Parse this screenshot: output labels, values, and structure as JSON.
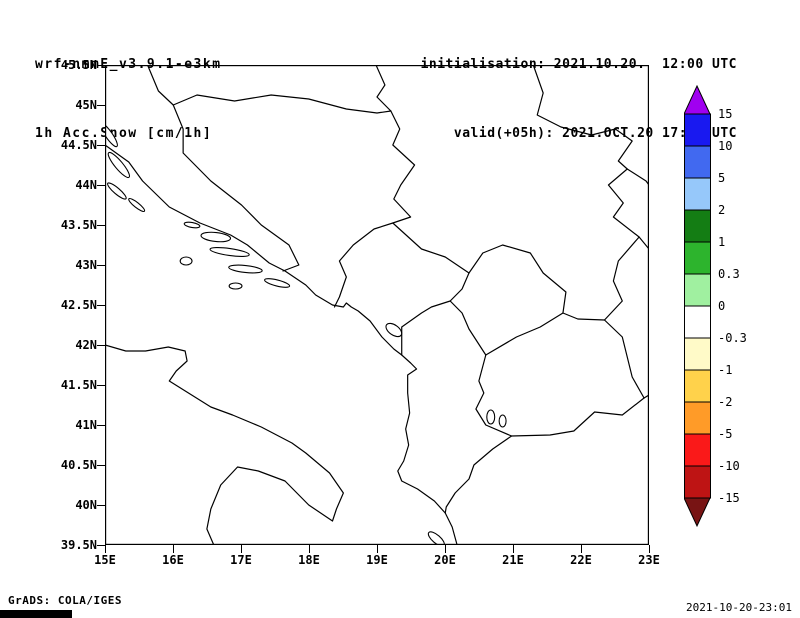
{
  "header": {
    "model": "wrf-nmmE_v3.9.1-e3km",
    "product": "1h Acc.Snow [cm/1h]",
    "init": "initialisation: 2021.10.20.  12:00 UTC",
    "valid": "valid(+05h): 2021.OCT.20 17:00 UTC"
  },
  "map": {
    "lat_labels": [
      "45.5N",
      "45N",
      "44.5N",
      "44N",
      "43.5N",
      "43N",
      "42.5N",
      "42N",
      "41.5N",
      "41N",
      "40.5N",
      "40N",
      "39.5N"
    ],
    "lon_labels": [
      "15E",
      "16E",
      "17E",
      "18E",
      "19E",
      "20E",
      "21E",
      "22E",
      "23E"
    ],
    "lat_range": [
      39.5,
      45.5
    ],
    "lon_range": [
      15,
      23
    ]
  },
  "colorbar": {
    "levels": [
      "15",
      "10",
      "5",
      "2",
      "1",
      "0.3",
      "0",
      "-0.3",
      "-1",
      "-2",
      "-5",
      "-10",
      "-15"
    ],
    "colors": [
      "#a000f0",
      "#1919f0",
      "#4169f0",
      "#96c8fa",
      "#147d14",
      "#2db42d",
      "#a0f0a0",
      "#ffffff",
      "#fffac8",
      "#ffd24b",
      "#ff9b28",
      "#fa1919",
      "#be1414",
      "#781414"
    ]
  },
  "footer": {
    "credit": "GrADS: COLA/IGES",
    "timestamp": "2021-10-20-23:01"
  }
}
